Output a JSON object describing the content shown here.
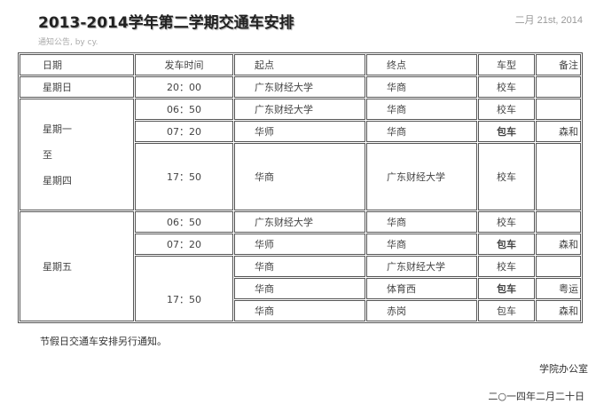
{
  "post": {
    "title": "2013-2014学年第二学期交通车安排",
    "date": "二月 21st, 2014",
    "meta": "通知公告, by cy."
  },
  "table": {
    "headers": [
      "日期",
      "发车时间",
      "起点",
      "终点",
      "车型",
      "备注"
    ],
    "rows": [
      {
        "day": "星期日",
        "day_rowspan": 1,
        "time": "20：00",
        "time_rowspan": 1,
        "from": "广东财经大学",
        "to": "华商",
        "type": "校车",
        "type_bold": false,
        "note": ""
      },
      {
        "day": [
          "星期一",
          "至",
          "星期四"
        ],
        "day_rowspan": 3,
        "time": "06：50",
        "time_rowspan": 1,
        "from": "广东财经大学",
        "to": "华商",
        "type": "校车",
        "type_bold": false,
        "note": ""
      },
      {
        "time": "07：20",
        "time_rowspan": 1,
        "from": "华师",
        "to": "华商",
        "type": "包车",
        "type_bold": true,
        "note": "森和"
      },
      {
        "time": "17：50",
        "time_rowspan": 1,
        "tall": true,
        "from": "华商",
        "to": "广东财经大学",
        "type": "校车",
        "type_bold": false,
        "note": ""
      },
      {
        "day": "星期五",
        "day_rowspan": 5,
        "time": "06：50",
        "time_rowspan": 1,
        "from": "广东财经大学",
        "to": "华商",
        "type": "校车",
        "type_bold": false,
        "note": ""
      },
      {
        "time": "07：20",
        "time_rowspan": 1,
        "from": "华师",
        "to": "华商",
        "type": "包车",
        "type_bold": true,
        "note": "森和"
      },
      {
        "time": "17：50",
        "time_rowspan": 3,
        "from": "华商",
        "to": "广东财经大学",
        "type": "校车",
        "type_bold": false,
        "note": ""
      },
      {
        "from": "华商",
        "to": "体育西",
        "type": "包车",
        "type_bold": true,
        "note": "粤运"
      },
      {
        "from": "华商",
        "to": "赤岗",
        "type": "包车",
        "type_bold": false,
        "note": "森和"
      }
    ]
  },
  "footer": {
    "note": "节假日交通车安排另行通知。",
    "office": "学院办公室",
    "sign_date": "二○一四年二月二十日"
  }
}
